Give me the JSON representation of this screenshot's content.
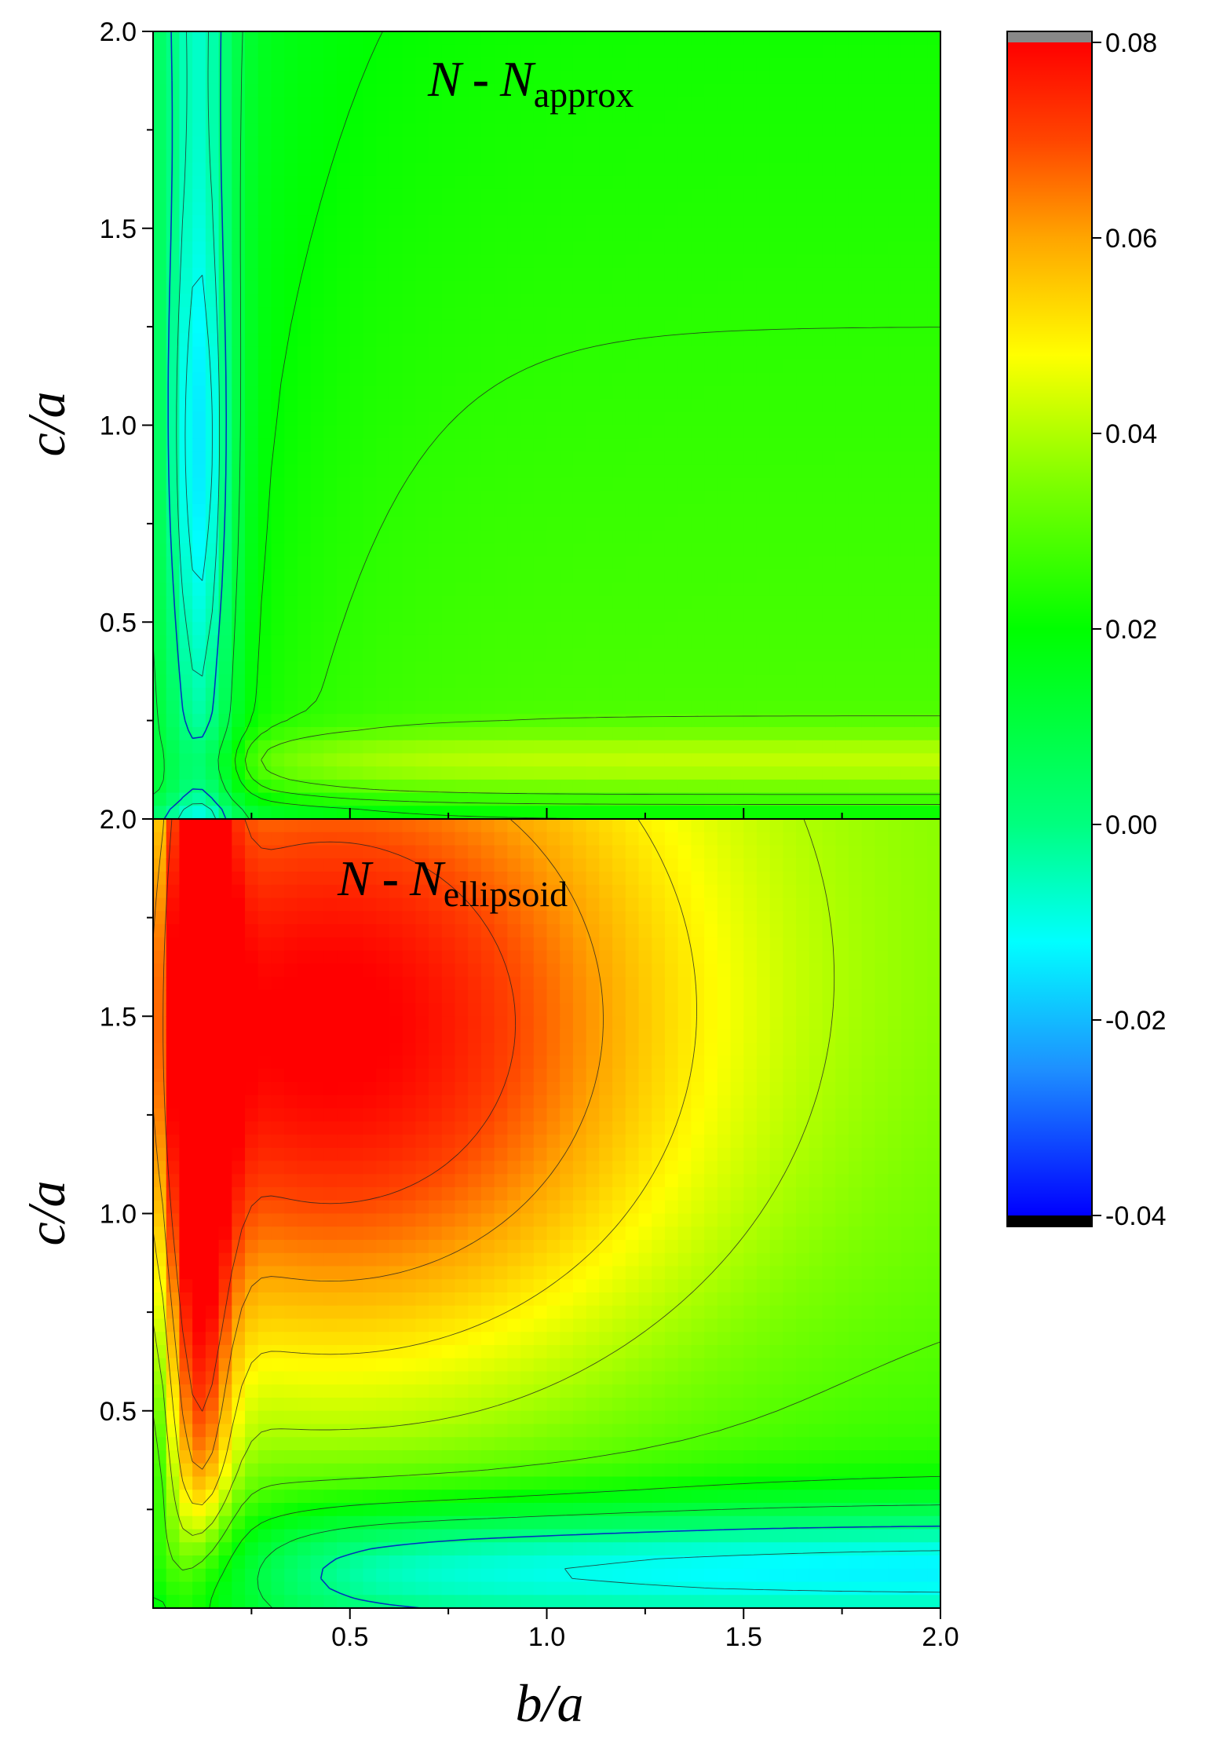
{
  "chart_data": [
    {
      "type": "heatmap",
      "panel": "top",
      "label": {
        "N": "N",
        "op": "-",
        "sub": "approx"
      },
      "xlabel": "b/a",
      "ylabel": "c/a",
      "xlim": [
        0,
        2.0
      ],
      "ylim": [
        0,
        2.0
      ],
      "yticks": [
        "0.5",
        "1.0",
        "1.5",
        "2.0"
      ],
      "description_values": {
        "min_region": -0.012,
        "max_region": 0.032
      },
      "contour_levels": [
        -0.01,
        -0.005,
        0.0,
        0.01,
        0.02,
        0.025,
        0.03
      ]
    },
    {
      "type": "heatmap",
      "panel": "bottom",
      "label": {
        "N": "N",
        "op": "-",
        "sub": "ellipsoid"
      },
      "xlabel": "b/a",
      "ylabel": "c/a",
      "xlim": [
        0,
        2.0
      ],
      "ylim": [
        0,
        2.0
      ],
      "xticks": [
        "0.5",
        "1.0",
        "1.5",
        "2.0"
      ],
      "yticks": [
        "0.5",
        "1.0",
        "1.5",
        "2.0"
      ],
      "description_values": {
        "min_region": -0.018,
        "max_region": 0.073
      },
      "contour_levels": [
        -0.01,
        0.0,
        0.01,
        0.02,
        0.03,
        0.04,
        0.05,
        0.06,
        0.07
      ]
    }
  ],
  "colorbar": {
    "min": -0.04,
    "max": 0.08,
    "ticks": [
      "0.08",
      "0.06",
      "0.04",
      "0.02",
      "0.00",
      "-0.02",
      "-0.04"
    ],
    "over_color": "#888888",
    "under_color": "#000000",
    "stops": [
      {
        "v": -0.04,
        "c": "#0000ff"
      },
      {
        "v": -0.025,
        "c": "#1e90ff"
      },
      {
        "v": -0.012,
        "c": "#00ffff"
      },
      {
        "v": 0.0,
        "c": "#00ff7f"
      },
      {
        "v": 0.02,
        "c": "#00ff00"
      },
      {
        "v": 0.035,
        "c": "#7fff00"
      },
      {
        "v": 0.048,
        "c": "#ffff00"
      },
      {
        "v": 0.06,
        "c": "#ffa500"
      },
      {
        "v": 0.07,
        "c": "#ff4500"
      },
      {
        "v": 0.08,
        "c": "#ff0000"
      }
    ]
  }
}
